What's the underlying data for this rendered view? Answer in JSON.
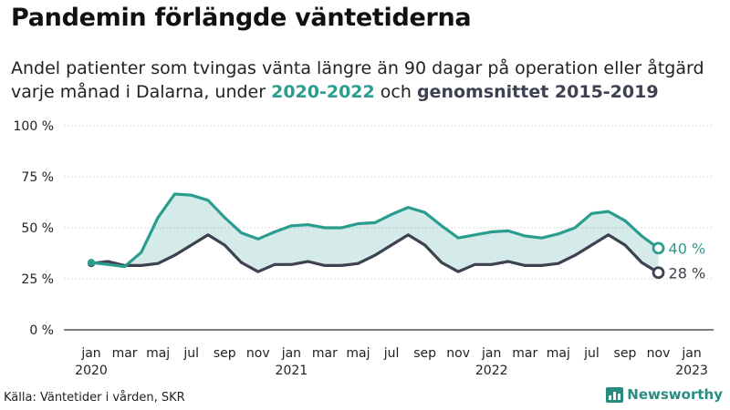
{
  "header": {
    "title": "Pandemin förlängde väntetiderna",
    "subtitle_line1": "Andel patienter som tvingas vänta längre än 90 dagar på operation eller åtgärd",
    "subtitle_line2_pre": "varje månad i Dalarna, under ",
    "subtitle_series_a": "2020-2022",
    "subtitle_mid": " och ",
    "subtitle_series_b": "genomsnittet 2015-2019"
  },
  "footer": {
    "source": "Källa: Väntetider i vården, SKR",
    "brand": "Newsworthy"
  },
  "chart_data": {
    "type": "line",
    "y_ticks": [
      "100 %",
      "75 %",
      "50 %",
      "25 %",
      "0 %"
    ],
    "ylim": [
      0,
      100
    ],
    "x_ticks": [
      {
        "i": 0,
        "month": "jan",
        "year": "2020"
      },
      {
        "i": 2,
        "month": "mar"
      },
      {
        "i": 4,
        "month": "maj"
      },
      {
        "i": 6,
        "month": "jul"
      },
      {
        "i": 8,
        "month": "sep"
      },
      {
        "i": 10,
        "month": "nov"
      },
      {
        "i": 12,
        "month": "jan",
        "year": "2021"
      },
      {
        "i": 14,
        "month": "mar"
      },
      {
        "i": 16,
        "month": "maj"
      },
      {
        "i": 18,
        "month": "jul"
      },
      {
        "i": 20,
        "month": "sep"
      },
      {
        "i": 22,
        "month": "nov"
      },
      {
        "i": 24,
        "month": "jan",
        "year": "2022"
      },
      {
        "i": 26,
        "month": "mar"
      },
      {
        "i": 28,
        "month": "maj"
      },
      {
        "i": 30,
        "month": "jul"
      },
      {
        "i": 32,
        "month": "sep"
      },
      {
        "i": 34,
        "month": "nov"
      },
      {
        "i": 36,
        "month": "jan",
        "year": "2023"
      }
    ],
    "series": [
      {
        "color": "#2a9d8f",
        "values": [
          33,
          32,
          31,
          38,
          55,
          66.5,
          66,
          63.5,
          55,
          47.5,
          44.5,
          48,
          51,
          51.5,
          50,
          50,
          52,
          52.5,
          56.5,
          60,
          57.5,
          51,
          45,
          46.5,
          48,
          48.5,
          46,
          45,
          47,
          50,
          57,
          58,
          53.5,
          46,
          40
        ],
        "end_label": "40 %"
      },
      {
        "color": "#3d4150",
        "values": [
          32.5,
          33.5,
          31.5,
          31.5,
          32.5,
          36.5,
          41.5,
          46.5,
          41.5,
          33,
          28.5,
          32,
          32,
          33.5,
          31.5,
          31.5,
          32.5,
          36.5,
          41.5,
          46.5,
          41.5,
          33,
          28.5,
          32,
          32,
          33.5,
          31.5,
          31.5,
          32.5,
          36.5,
          41.5,
          46.5,
          41.5,
          33,
          28
        ],
        "end_label": "28 %"
      }
    ],
    "fill_between": {
      "color": "#2a9d8f",
      "opacity": 0.2
    },
    "grid": true
  }
}
